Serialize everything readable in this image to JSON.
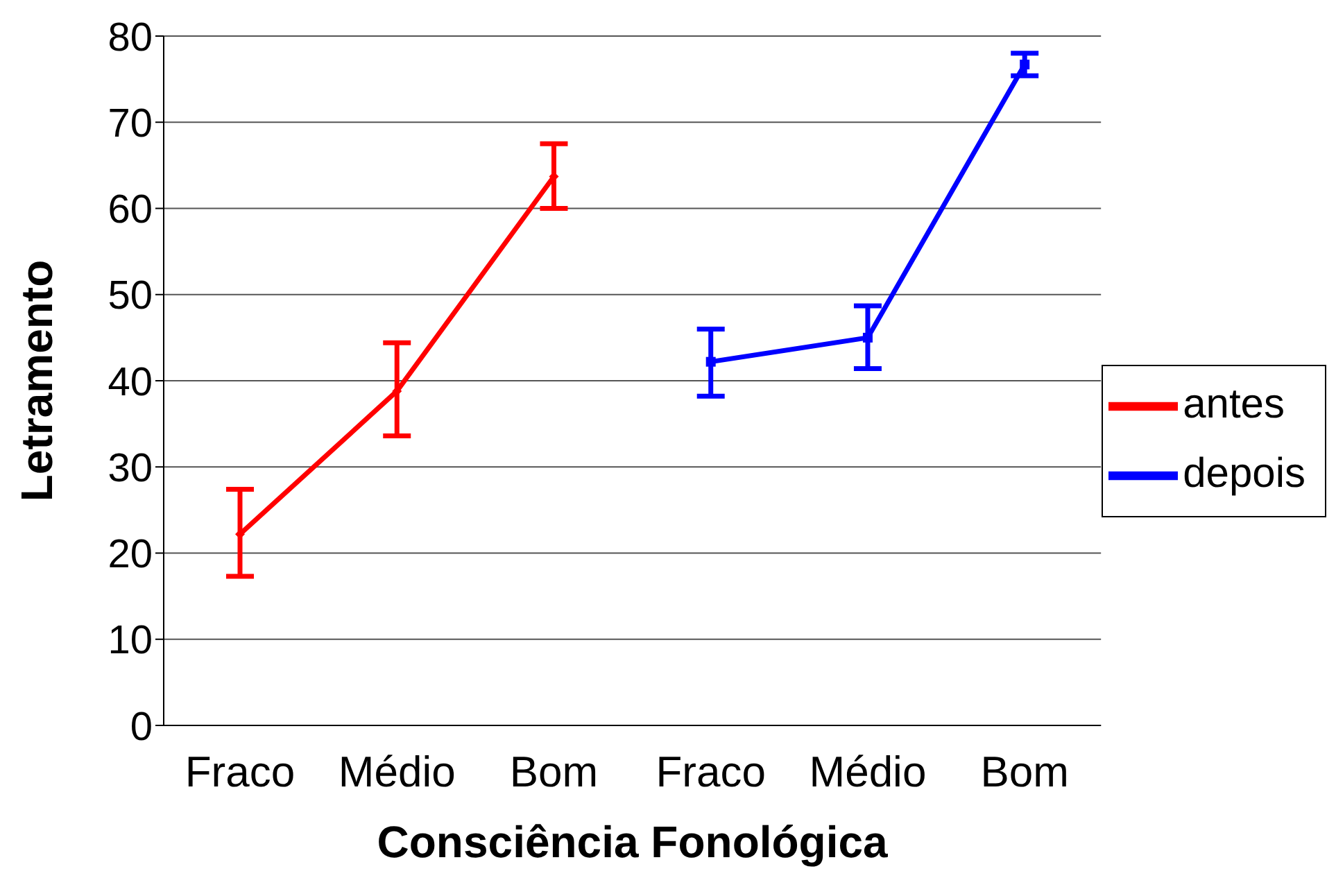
{
  "chart_data": {
    "type": "line",
    "xlabel": "Consciência Fonológica",
    "ylabel": "Letramento",
    "categories": [
      "Fraco",
      "Médio",
      "Bom",
      "Fraco",
      "Médio",
      "Bom"
    ],
    "series": [
      {
        "name": "antes",
        "color": "#ff0000",
        "marker": "diamond",
        "values": [
          22.2,
          38.8,
          63.7,
          null,
          null,
          null
        ],
        "errors": [
          [
            17.3,
            27.4
          ],
          [
            33.6,
            44.4
          ],
          [
            60.0,
            67.5
          ],
          null,
          null,
          null
        ]
      },
      {
        "name": "depois",
        "color": "#0000ff",
        "marker": "square",
        "values": [
          null,
          null,
          null,
          42.2,
          45.0,
          76.7
        ],
        "errors": [
          null,
          null,
          null,
          [
            38.2,
            46.0
          ],
          [
            41.4,
            48.7
          ],
          [
            75.4,
            78.0
          ]
        ]
      }
    ],
    "ylim": [
      0,
      80
    ],
    "yticks": [
      0,
      10,
      20,
      30,
      40,
      50,
      60,
      70,
      80
    ],
    "grid": "y",
    "legend": "right",
    "line_style": "solid"
  }
}
